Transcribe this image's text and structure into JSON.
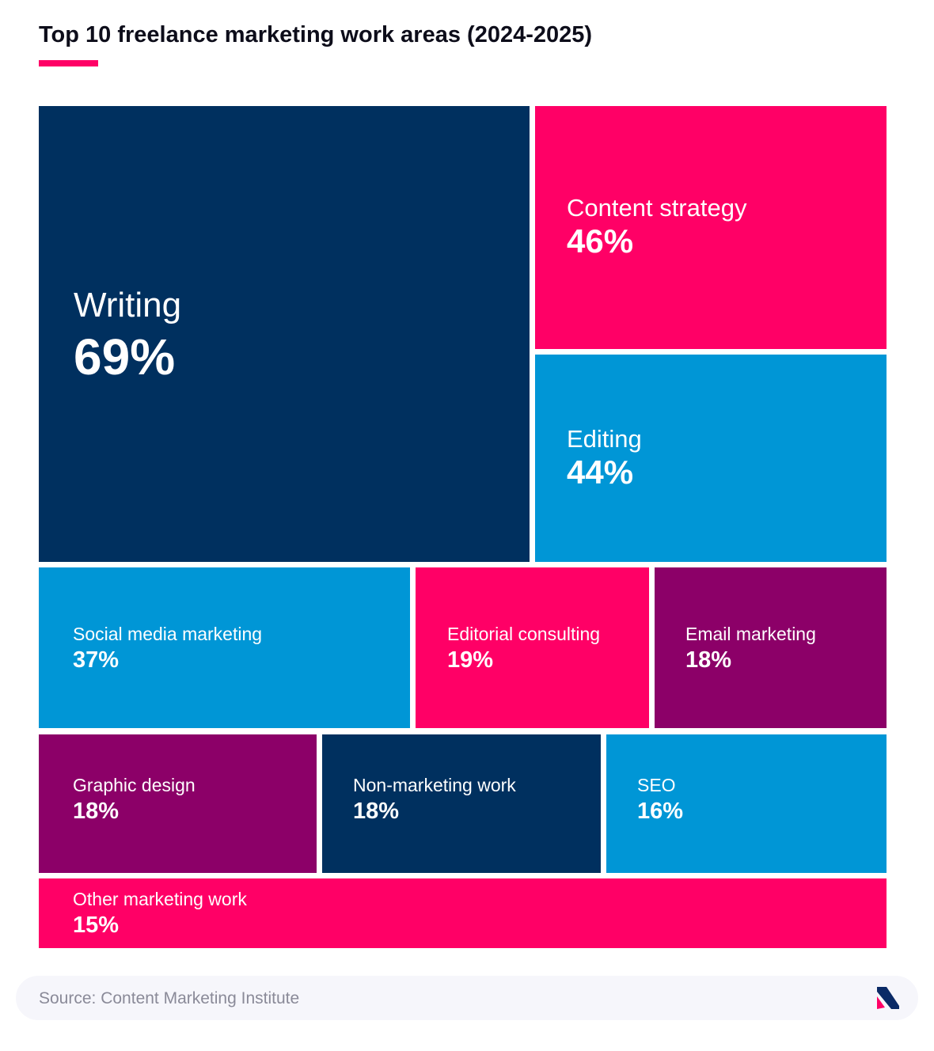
{
  "page": {
    "title": "Top 10 freelance marketing work areas (2024-2025)",
    "source": "Source: Content Marketing Institute",
    "accent_color": "#ff0066"
  },
  "logo": {
    "icon": "brand-logo-icon",
    "colors": [
      "#ff0066",
      "#0a2a66"
    ]
  },
  "chart_data": {
    "type": "treemap",
    "title": "Top 10 freelance marketing work areas (2024-2025)",
    "unit": "%",
    "items": [
      {
        "label": "Writing",
        "value": 69,
        "display": "69%",
        "color": "#00305f"
      },
      {
        "label": "Content strategy",
        "value": 46,
        "display": "46%",
        "color": "#ff0066"
      },
      {
        "label": "Editing",
        "value": 44,
        "display": "44%",
        "color": "#0096d6"
      },
      {
        "label": "Social media marketing",
        "value": 37,
        "display": "37%",
        "color": "#0096d6"
      },
      {
        "label": "Editorial consulting",
        "value": 19,
        "display": "19%",
        "color": "#ff0066"
      },
      {
        "label": "Email marketing",
        "value": 18,
        "display": "18%",
        "color": "#8c0068"
      },
      {
        "label": "Graphic design",
        "value": 18,
        "display": "18%",
        "color": "#8c0068"
      },
      {
        "label": "Non-marketing work",
        "value": 18,
        "display": "18%",
        "color": "#00305f"
      },
      {
        "label": "SEO",
        "value": 16,
        "display": "16%",
        "color": "#0096d6"
      },
      {
        "label": "Other marketing work",
        "value": 15,
        "display": "15%",
        "color": "#ff0066"
      }
    ]
  }
}
